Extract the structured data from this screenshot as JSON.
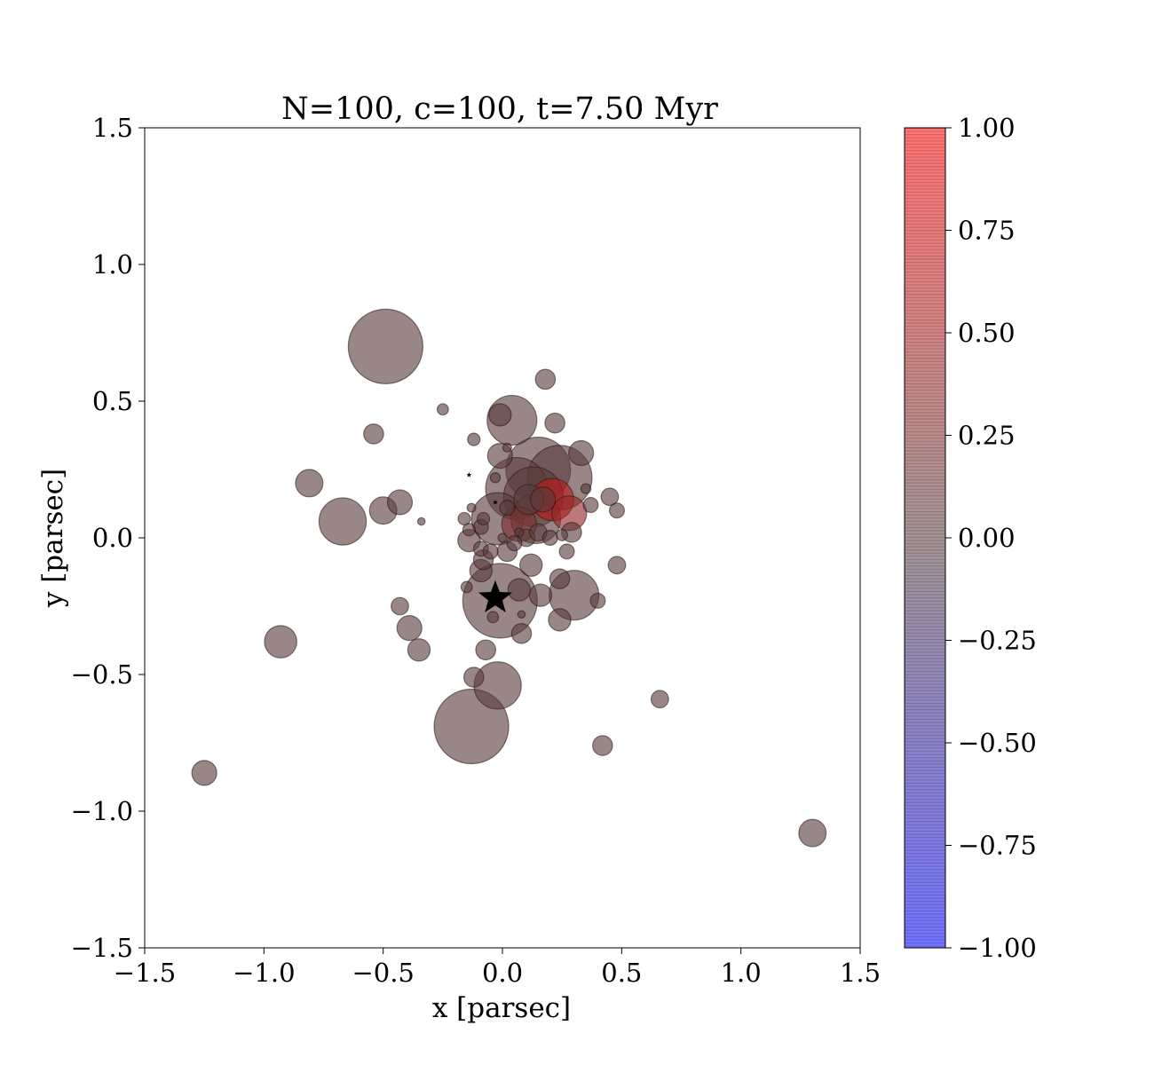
{
  "chart_data": {
    "type": "scatter",
    "title": "N=100, c=100, t=7.50 Myr",
    "xlabel": "x [parsec]",
    "ylabel": "y [parsec]",
    "xlim": [
      -1.5,
      1.5
    ],
    "ylim": [
      -1.5,
      1.5
    ],
    "xticks": [
      -1.5,
      -1.0,
      -0.5,
      0.0,
      0.5,
      1.0,
      1.5
    ],
    "xtick_labels": [
      "−1.5",
      "−1.0",
      "−0.5",
      "0.0",
      "0.5",
      "1.0",
      "1.5"
    ],
    "yticks": [
      -1.5,
      -1.0,
      -0.5,
      0.0,
      0.5,
      1.0,
      1.5
    ],
    "ytick_labels": [
      "−1.5",
      "−1.0",
      "−0.5",
      "0.0",
      "0.5",
      "1.0",
      "1.5"
    ],
    "grid": false,
    "colorbar": {
      "min": -1.0,
      "max": 1.0,
      "ticks": [
        1.0,
        0.75,
        0.5,
        0.25,
        0.0,
        -0.25,
        -0.5,
        -0.75,
        -1.0
      ],
      "tick_labels": [
        "1.00",
        "0.75",
        "0.50",
        "0.25",
        "0.00",
        "−0.25",
        "−0.50",
        "−0.75",
        "−1.00"
      ],
      "colormap": "blue-gray-red",
      "color_low": "#0000ff",
      "color_mid": "#5a3c3c",
      "color_high": "#ff0000"
    },
    "points": [
      {
        "x": -0.49,
        "y": 0.7,
        "size": 3,
        "value": 0.0
      },
      {
        "x": -0.13,
        "y": -0.69,
        "size": 3,
        "value": 0.0
      },
      {
        "x": -0.01,
        "y": -0.23,
        "size": 3,
        "value": 0.0
      },
      {
        "x": 0.15,
        "y": 0.25,
        "size": 2.6,
        "value": 0.0
      },
      {
        "x": 0.24,
        "y": 0.22,
        "size": 2.6,
        "value": 0.0
      },
      {
        "x": 0.06,
        "y": 0.18,
        "size": 2.5,
        "value": 0.0
      },
      {
        "x": 0.13,
        "y": 0.15,
        "size": 2.4,
        "value": 0.0
      },
      {
        "x": 0.3,
        "y": -0.21,
        "size": 2.0,
        "value": 0.0
      },
      {
        "x": -0.02,
        "y": 0.07,
        "size": 2.1,
        "value": 0.0
      },
      {
        "x": 0.14,
        "y": 0.07,
        "size": 2.0,
        "value": 0.0
      },
      {
        "x": 0.04,
        "y": 0.43,
        "size": 2.0,
        "value": 0.0
      },
      {
        "x": -0.02,
        "y": -0.54,
        "size": 1.9,
        "value": 0.0
      },
      {
        "x": -0.67,
        "y": 0.06,
        "size": 1.9,
        "value": 0.0
      },
      {
        "x": 0.21,
        "y": 0.14,
        "size": 1.7,
        "value": 0.6
      },
      {
        "x": 0.28,
        "y": 0.09,
        "size": 1.4,
        "value": 0.35
      },
      {
        "x": 0.07,
        "y": 0.05,
        "size": 1.4,
        "value": 0.2
      },
      {
        "x": 0.11,
        "y": 0.14,
        "size": 1.2,
        "value": 0.0
      },
      {
        "x": 0.17,
        "y": 0.14,
        "size": 1.0,
        "value": 0.0
      },
      {
        "x": -0.93,
        "y": -0.38,
        "size": 1.3,
        "value": 0.0
      },
      {
        "x": 1.3,
        "y": -1.08,
        "size": 1.1,
        "value": 0.0
      },
      {
        "x": -1.25,
        "y": -0.86,
        "size": 1.0,
        "value": 0.0
      },
      {
        "x": -0.81,
        "y": 0.2,
        "size": 1.1,
        "value": 0.0
      },
      {
        "x": -0.5,
        "y": 0.1,
        "size": 1.1,
        "value": 0.0
      },
      {
        "x": -0.43,
        "y": 0.13,
        "size": 1.0,
        "value": 0.0
      },
      {
        "x": -0.39,
        "y": -0.33,
        "size": 1.0,
        "value": 0.0
      },
      {
        "x": -0.35,
        "y": -0.41,
        "size": 0.9,
        "value": 0.0
      },
      {
        "x": 0.33,
        "y": 0.31,
        "size": 1.0,
        "value": 0.0
      },
      {
        "x": -0.01,
        "y": 0.3,
        "size": 1.0,
        "value": 0.0
      },
      {
        "x": -0.01,
        "y": 0.45,
        "size": 0.9,
        "value": 0.0
      },
      {
        "x": 0.18,
        "y": 0.58,
        "size": 0.8,
        "value": 0.0
      },
      {
        "x": 0.22,
        "y": 0.42,
        "size": 0.8,
        "value": 0.0
      },
      {
        "x": -0.54,
        "y": 0.38,
        "size": 0.8,
        "value": 0.0
      },
      {
        "x": 0.12,
        "y": -0.1,
        "size": 0.9,
        "value": 0.0
      },
      {
        "x": 0.16,
        "y": -0.21,
        "size": 0.9,
        "value": 0.0
      },
      {
        "x": 0.24,
        "y": -0.3,
        "size": 0.9,
        "value": 0.0
      },
      {
        "x": 0.07,
        "y": -0.19,
        "size": 0.9,
        "value": 0.0
      },
      {
        "x": -0.09,
        "y": -0.12,
        "size": 0.9,
        "value": 0.0
      },
      {
        "x": -0.14,
        "y": -0.01,
        "size": 0.9,
        "value": 0.0
      },
      {
        "x": 0.29,
        "y": 0.02,
        "size": 0.8,
        "value": 0.0
      },
      {
        "x": 0.24,
        "y": -0.15,
        "size": 0.8,
        "value": 0.0
      },
      {
        "x": 0.08,
        "y": -0.35,
        "size": 0.8,
        "value": 0.0
      },
      {
        "x": -0.07,
        "y": -0.41,
        "size": 0.8,
        "value": 0.0
      },
      {
        "x": -0.12,
        "y": -0.51,
        "size": 0.8,
        "value": 0.0
      },
      {
        "x": 0.42,
        "y": -0.76,
        "size": 0.8,
        "value": 0.0
      },
      {
        "x": 0.66,
        "y": -0.59,
        "size": 0.7,
        "value": 0.0
      },
      {
        "x": 0.02,
        "y": -0.05,
        "size": 0.8,
        "value": 0.0
      },
      {
        "x": -0.08,
        "y": -0.08,
        "size": 0.8,
        "value": 0.0
      },
      {
        "x": 0.45,
        "y": 0.15,
        "size": 0.7,
        "value": 0.0
      },
      {
        "x": 0.48,
        "y": -0.1,
        "size": 0.7,
        "value": 0.0
      },
      {
        "x": -0.43,
        "y": -0.25,
        "size": 0.7,
        "value": 0.0
      },
      {
        "x": 0.1,
        "y": 0.0,
        "size": 0.7,
        "value": 0.0
      },
      {
        "x": 0.15,
        "y": 0.02,
        "size": 0.7,
        "value": 0.0
      },
      {
        "x": 0.05,
        "y": -0.02,
        "size": 0.6,
        "value": 0.0
      },
      {
        "x": -0.09,
        "y": 0.04,
        "size": 0.6,
        "value": 0.0
      },
      {
        "x": 0.27,
        "y": -0.05,
        "size": 0.6,
        "value": 0.0
      },
      {
        "x": 0.4,
        "y": -0.23,
        "size": 0.6,
        "value": 0.0
      },
      {
        "x": 0.48,
        "y": 0.1,
        "size": 0.6,
        "value": 0.0
      },
      {
        "x": 0.37,
        "y": 0.12,
        "size": 0.6,
        "value": 0.0
      },
      {
        "x": -0.09,
        "y": -0.04,
        "size": 0.6,
        "value": 0.0
      },
      {
        "x": -0.05,
        "y": -0.05,
        "size": 0.6,
        "value": 0.0
      },
      {
        "x": 0.02,
        "y": 0.11,
        "size": 0.6,
        "value": 0.0
      },
      {
        "x": 0.2,
        "y": 0.0,
        "size": 0.6,
        "value": 0.0
      },
      {
        "x": -0.12,
        "y": 0.36,
        "size": 0.5,
        "value": 0.0
      },
      {
        "x": -0.14,
        "y": 0.03,
        "size": 0.5,
        "value": 0.0
      },
      {
        "x": -0.16,
        "y": 0.07,
        "size": 0.5,
        "value": 0.0
      },
      {
        "x": -0.08,
        "y": 0.07,
        "size": 0.5,
        "value": 0.0
      },
      {
        "x": -0.04,
        "y": -0.29,
        "size": 0.45,
        "value": 0.0
      },
      {
        "x": -0.25,
        "y": 0.47,
        "size": 0.45,
        "value": 0.0
      },
      {
        "x": -0.15,
        "y": -0.18,
        "size": 0.45,
        "value": 0.0
      },
      {
        "x": 0.02,
        "y": 0.33,
        "size": 0.35,
        "value": 0.0
      },
      {
        "x": 0.25,
        "y": 0.01,
        "size": 0.45,
        "value": 0.0
      },
      {
        "x": 0.35,
        "y": 0.18,
        "size": 0.4,
        "value": 0.0
      },
      {
        "x": -0.03,
        "y": 0.22,
        "size": 0.4,
        "value": 0.0
      },
      {
        "x": -0.13,
        "y": 0.11,
        "size": 0.35,
        "value": 0.0
      },
      {
        "x": 0.08,
        "y": -0.28,
        "size": 0.3,
        "value": 0.0
      },
      {
        "x": -0.34,
        "y": 0.06,
        "size": 0.3,
        "value": 0.0
      },
      {
        "x": 0.07,
        "y": 0.02,
        "size": 0.35,
        "value": 0.0
      },
      {
        "x": 0.0,
        "y": 0.0,
        "size": 0.35,
        "value": 0.0
      }
    ],
    "star_markers": [
      {
        "x": -0.03,
        "y": -0.22,
        "size": 4
      },
      {
        "x": -0.14,
        "y": 0.23,
        "size": 0.6
      },
      {
        "x": -0.03,
        "y": 0.13,
        "size": 0.6
      }
    ]
  }
}
